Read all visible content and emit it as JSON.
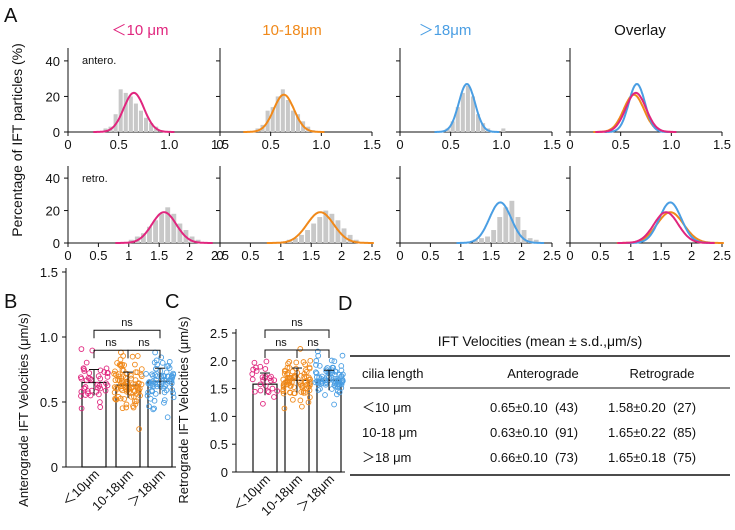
{
  "colors": {
    "lt10": "#e0267e",
    "mid": "#f0891a",
    "gt18": "#4a9ee3",
    "overlay_title": "#111111",
    "hist": "#c8c8c8"
  },
  "panel_A": {
    "letter": "A",
    "ylabel": "Percentage of IFT particles (%)",
    "columns": [
      "＜10 μm",
      "10-18μm",
      "＞18μm",
      "Overlay"
    ],
    "row_labels": [
      "antero.",
      "retro."
    ],
    "antero_yticks": [
      "0",
      "20",
      "40"
    ],
    "retro_yticks": [
      "0",
      "20",
      "40"
    ],
    "antero_xticks": [
      "0",
      "0.5",
      "1.0",
      "1.5"
    ],
    "retro_xticks": [
      "0",
      "0.5",
      "1",
      "1.5",
      "2",
      "2.5"
    ]
  },
  "panel_B": {
    "letter": "B",
    "ylabel": "Anterograde IFT Velocities (μm/s)",
    "yticks": [
      "0",
      "0.5",
      "1.0",
      "1.5"
    ],
    "sig": [
      "ns",
      "ns",
      "ns"
    ]
  },
  "panel_C": {
    "letter": "C",
    "ylabel": "Retrograde IFT Velocities (μm/s)",
    "yticks": [
      "0",
      "0.5",
      "1.0",
      "1.5",
      "2.0",
      "2.5"
    ],
    "sig": [
      "ns",
      "ns",
      "ns"
    ]
  },
  "panel_D": {
    "letter": "D",
    "title": "IFT Velocities (mean ± s.d.,μm/s)",
    "headers": [
      "cilia length",
      "Anterograde",
      "Retrograde"
    ],
    "rows": [
      [
        "＜10 μm",
        "0.65±0.10  (43)",
        "1.58±0.20  (27)"
      ],
      [
        "10-18 μm",
        "0.63±0.10  (91)",
        "1.65±0.22  (85)"
      ],
      [
        "＞18 μm",
        "0.66±0.10  (73)",
        "1.65±0.18  (75)"
      ]
    ]
  },
  "chart_data": [
    {
      "type": "bar",
      "panel": "A-antero",
      "note_type": "histogram with gaussian fit",
      "x_range": [
        0,
        1.5
      ],
      "y_range": [
        0,
        45
      ],
      "series": [
        {
          "name": "＜10 μm",
          "bins": [
            0.35,
            0.4,
            0.45,
            0.5,
            0.55,
            0.6,
            0.65,
            0.7,
            0.75,
            0.8,
            0.85,
            0.9
          ],
          "values": [
            2,
            3,
            10,
            24,
            22,
            20,
            16,
            12,
            8,
            5,
            3,
            1
          ],
          "fit_mean": 0.65,
          "fit_sd": 0.1,
          "fit_peak": 22
        },
        {
          "name": "10-18μm",
          "bins": [
            0.35,
            0.4,
            0.45,
            0.5,
            0.55,
            0.6,
            0.65,
            0.7,
            0.75,
            0.8,
            0.85,
            0.9
          ],
          "values": [
            2,
            4,
            12,
            14,
            20,
            24,
            18,
            12,
            10,
            6,
            3,
            1
          ],
          "fit_mean": 0.63,
          "fit_sd": 0.1,
          "fit_peak": 21
        },
        {
          "name": "＞18μm",
          "bins": [
            0.45,
            0.5,
            0.55,
            0.6,
            0.65,
            0.7,
            0.75,
            0.8,
            0.85,
            1.0
          ],
          "values": [
            2,
            6,
            14,
            22,
            26,
            20,
            10,
            5,
            2,
            2
          ],
          "fit_mean": 0.66,
          "fit_sd": 0.08,
          "fit_peak": 27
        }
      ]
    },
    {
      "type": "bar",
      "panel": "A-retro",
      "note_type": "histogram with gaussian fit",
      "x_range": [
        0,
        2.5
      ],
      "y_range": [
        0,
        45
      ],
      "series": [
        {
          "name": "＜10 μm",
          "bins": [
            1.0,
            1.1,
            1.2,
            1.3,
            1.4,
            1.5,
            1.6,
            1.7,
            1.8,
            1.9,
            2.0,
            2.1
          ],
          "values": [
            2,
            4,
            6,
            10,
            14,
            18,
            22,
            18,
            12,
            8,
            4,
            2
          ],
          "fit_mean": 1.58,
          "fit_sd": 0.2,
          "fit_peak": 19
        },
        {
          "name": "10-18μm",
          "bins": [
            1.1,
            1.2,
            1.3,
            1.4,
            1.5,
            1.6,
            1.7,
            1.8,
            1.9,
            2.0,
            2.1,
            2.2
          ],
          "values": [
            2,
            3,
            5,
            8,
            12,
            16,
            20,
            18,
            14,
            9,
            5,
            2
          ],
          "fit_mean": 1.65,
          "fit_sd": 0.22,
          "fit_peak": 19
        },
        {
          "name": "＞18μm",
          "bins": [
            1.2,
            1.3,
            1.4,
            1.5,
            1.6,
            1.7,
            1.8,
            1.9,
            2.0,
            2.1,
            2.2
          ],
          "values": [
            2,
            3,
            4,
            8,
            16,
            22,
            26,
            16,
            8,
            3,
            2
          ],
          "fit_mean": 1.65,
          "fit_sd": 0.18,
          "fit_peak": 25
        }
      ]
    },
    {
      "type": "bar",
      "panel": "B",
      "categories": [
        "＜10μm",
        "10-18μm",
        "＞18μm"
      ],
      "values": [
        0.65,
        0.63,
        0.66
      ],
      "sd": [
        0.1,
        0.1,
        0.1
      ],
      "n": [
        43,
        91,
        73
      ],
      "ylim": [
        0,
        1.5
      ]
    },
    {
      "type": "bar",
      "panel": "C",
      "categories": [
        "＜10μm",
        "10-18μm",
        "＞18μm"
      ],
      "values": [
        1.58,
        1.65,
        1.65
      ],
      "sd": [
        0.2,
        0.22,
        0.18
      ],
      "n": [
        27,
        85,
        75
      ],
      "ylim": [
        0,
        2.5
      ]
    }
  ]
}
